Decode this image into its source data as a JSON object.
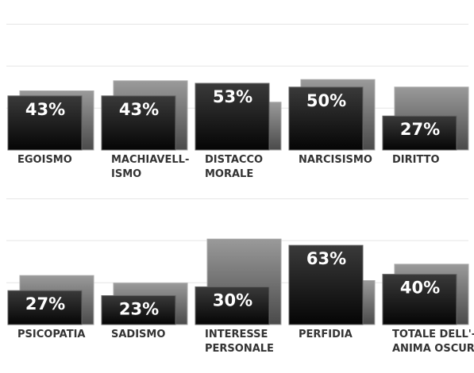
{
  "chart_data": [
    {
      "type": "bar",
      "categories": [
        "EGOISMO",
        "MACHIAVELL-\nISMO",
        "DISTACCO\nMORALE",
        "NARCISISMO",
        "DIRITTO"
      ],
      "series": [
        {
          "color": "#777777",
          "values": [
            47,
            55,
            38,
            56,
            50
          ]
        },
        {
          "color": "#1a1a1a",
          "values": [
            43,
            43,
            53,
            50,
            27
          ],
          "value_labels": [
            "43%",
            "43%",
            "53%",
            "50%",
            "27%"
          ]
        }
      ],
      "ylim": [
        0,
        100
      ],
      "yticks": [
        0,
        33.3,
        66.7,
        100
      ],
      "grid": true
    },
    {
      "type": "bar",
      "categories": [
        "PSICOPATIA",
        "SADISMO",
        "INTERESSE\nPERSONALE",
        "PERFIDIA",
        "TOTALE DELL'-\nANIMA OSCURA"
      ],
      "series": [
        {
          "color": "#777777",
          "values": [
            39,
            33,
            68,
            35,
            48
          ]
        },
        {
          "color": "#1a1a1a",
          "values": [
            27,
            23,
            30,
            63,
            40
          ],
          "value_labels": [
            "27%",
            "23%",
            "30%",
            "63%",
            "40%"
          ]
        }
      ],
      "ylim": [
        0,
        100
      ],
      "yticks": [
        0,
        33.3,
        66.7,
        100
      ],
      "grid": true
    }
  ]
}
